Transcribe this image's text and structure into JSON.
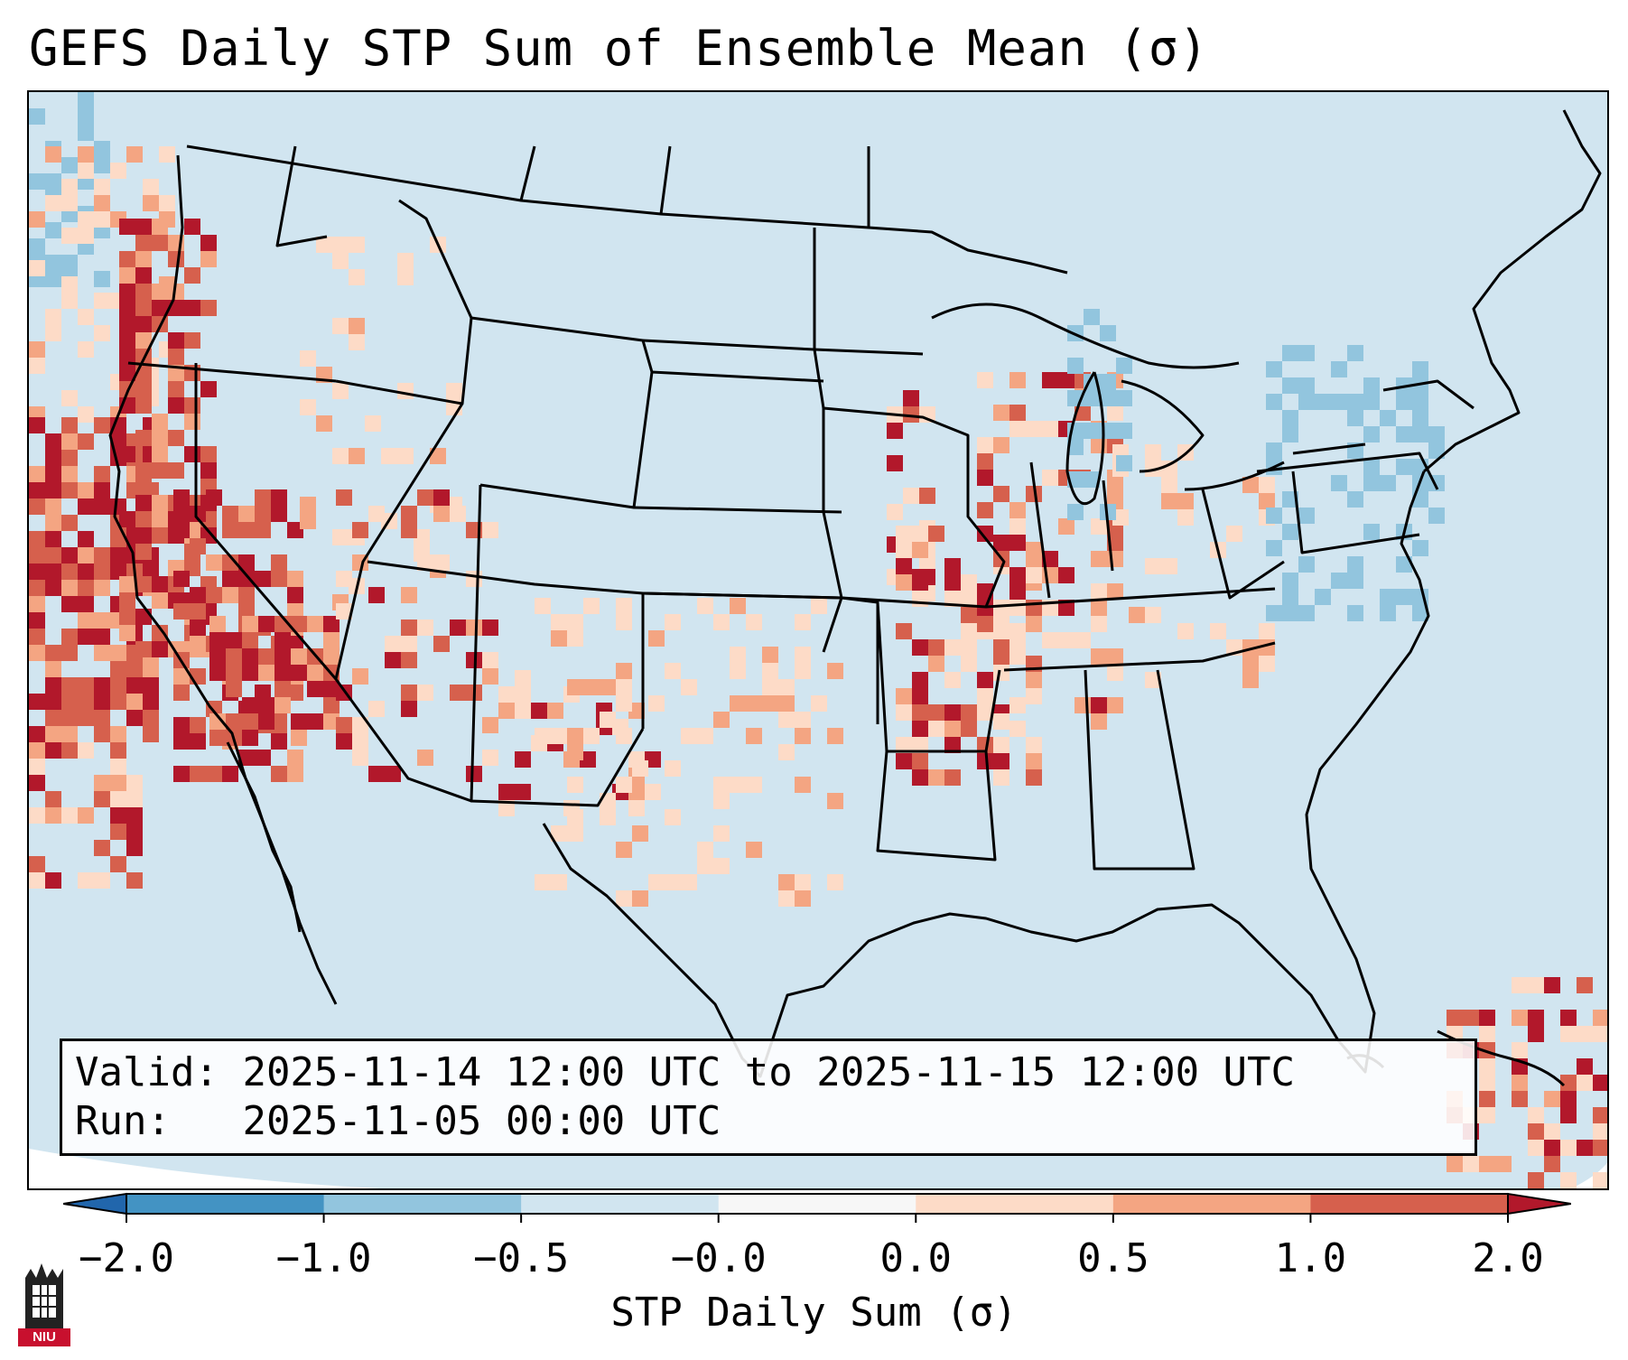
{
  "title": "GEFS Daily STP Sum of Ensemble Mean (σ)",
  "info": {
    "valid_label": "Valid:",
    "valid_text": "2025-11-14 12:00 UTC to 2025-11-15 12:00 UTC",
    "run_label": "Run:",
    "run_text": "2025-11-05 00:00 UTC"
  },
  "colorbar": {
    "label": "STP Daily Sum (σ)",
    "ticks": [
      "−2.0",
      "−1.0",
      "−0.5",
      "−0.0",
      "0.0",
      "0.5",
      "1.0",
      "2.0"
    ],
    "colors": [
      "#4393c3",
      "#92c5de",
      "#d1e5f0",
      "#f7f7f7",
      "#fddbc7",
      "#f4a582",
      "#d6604d"
    ],
    "under_color": "#2166ac",
    "over_color": "#b2182b"
  },
  "logo": {
    "text": "NIU"
  },
  "map_colors": {
    "ocean": "#d1e5f0",
    "neg_light": "#92c5de",
    "pos_light": "#fddbc7",
    "pos_mid": "#f4a582",
    "pos_strong": "#d6604d",
    "pos_max": "#b2182b"
  }
}
